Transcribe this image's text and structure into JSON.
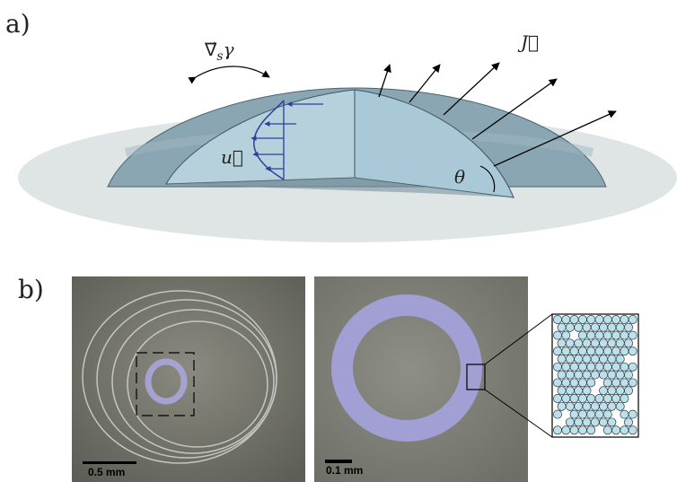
{
  "panel_a": {
    "label": "a)",
    "gradient_symbol": "∇⃗",
    "gradient_sub": "s",
    "gradient_var": "γ",
    "velocity": "u⃗",
    "flux": "J⃗",
    "angle": "θ"
  },
  "panel_b": {
    "label": "b)",
    "left_scale": "0.5 mm",
    "right_scale": "0.1 mm"
  }
}
